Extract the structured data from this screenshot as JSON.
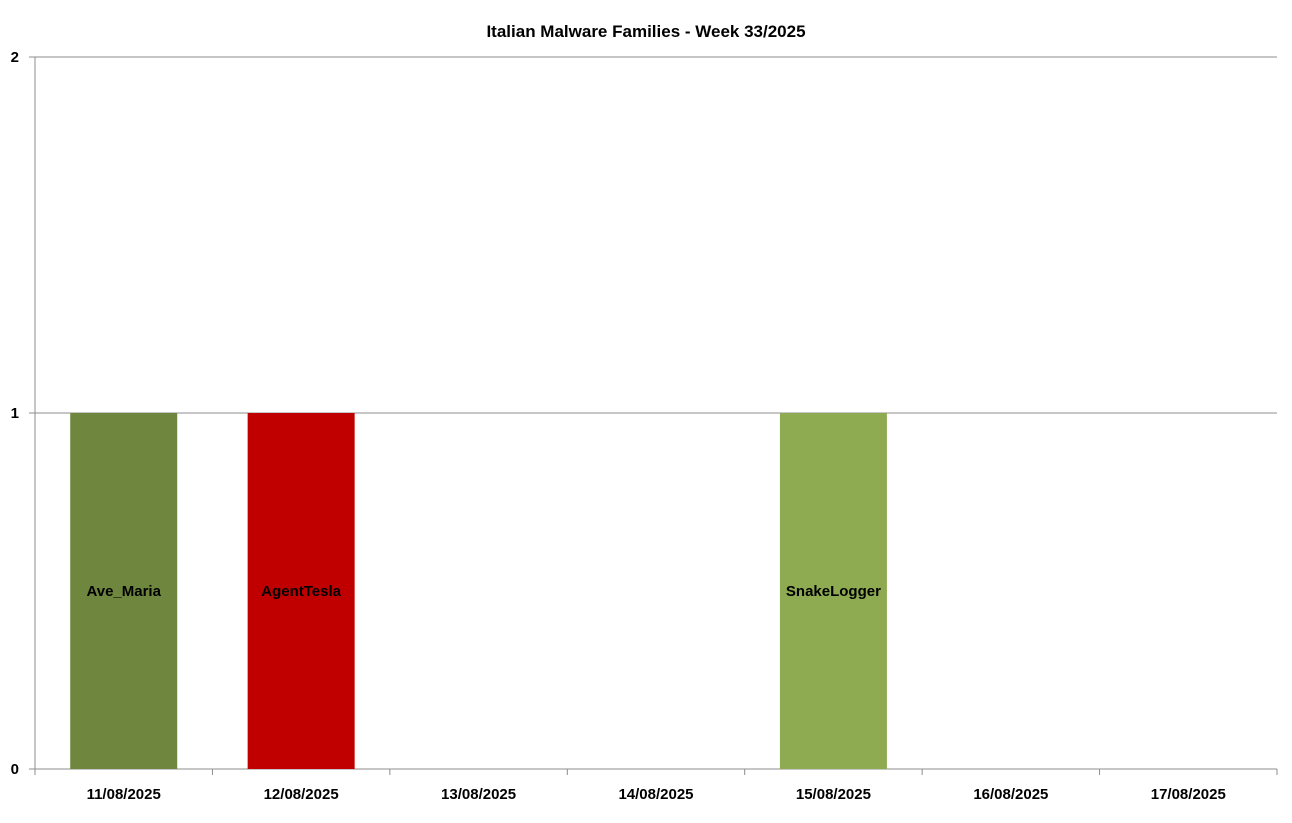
{
  "chart_data": {
    "type": "bar",
    "title": "Italian Malware Families - Week 33/2025",
    "xlabel": "",
    "ylabel": "",
    "categories": [
      "11/08/2025",
      "12/08/2025",
      "13/08/2025",
      "14/08/2025",
      "15/08/2025",
      "16/08/2025",
      "17/08/2025"
    ],
    "series": [
      {
        "name": "Ave_Maria",
        "color": "#6f863e",
        "values": [
          1,
          0,
          0,
          0,
          0,
          0,
          0
        ]
      },
      {
        "name": "AgentTesla",
        "color": "#c00000",
        "values": [
          0,
          1,
          0,
          0,
          0,
          0,
          0
        ]
      },
      {
        "name": "SnakeLogger",
        "color": "#8eab52",
        "values": [
          0,
          0,
          0,
          0,
          1,
          0,
          0
        ]
      }
    ],
    "ylim": [
      0,
      2
    ],
    "yticks": [
      0,
      1,
      2
    ],
    "grid": true,
    "legend": "none",
    "bar_labels": "series name, centered in bar"
  }
}
